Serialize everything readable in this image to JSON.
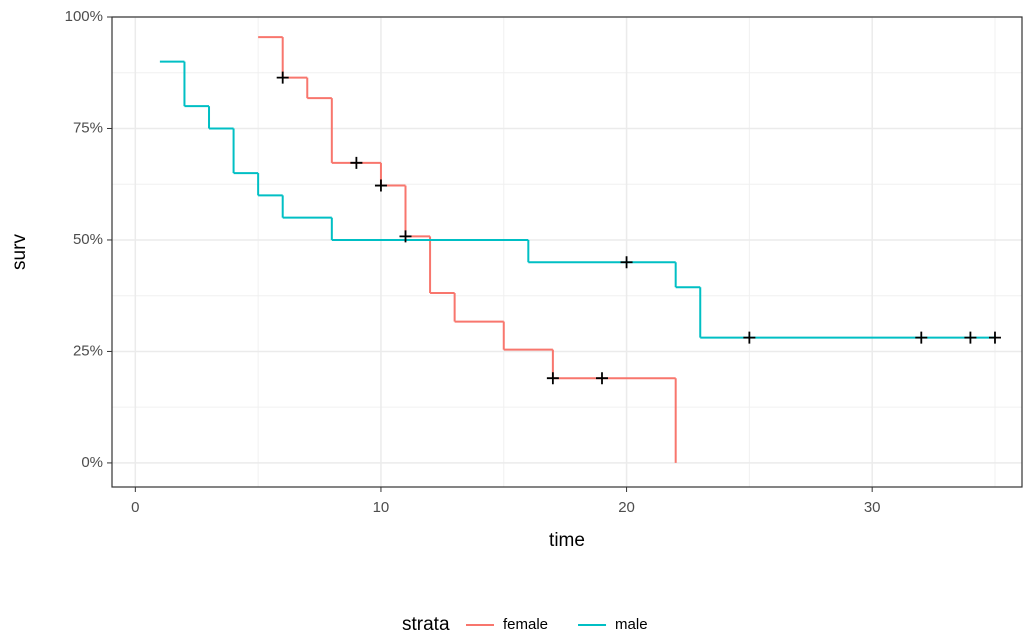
{
  "chart_data": {
    "type": "step",
    "x_label": "time",
    "y_label": "surv",
    "xlim": [
      -0.95,
      36.1
    ],
    "xticks": [
      0,
      10,
      20,
      30
    ],
    "ylim": [
      -5.4,
      100
    ],
    "yticks": [
      {
        "value": 0,
        "label": "0%"
      },
      {
        "value": 25,
        "label": "25%"
      },
      {
        "value": 50,
        "label": "50%"
      },
      {
        "value": 75,
        "label": "75%"
      },
      {
        "value": 100,
        "label": "100%"
      }
    ],
    "grid": true,
    "legend_position": "bottom",
    "legend_title": "strata",
    "censor_color": "#000000",
    "series": [
      {
        "name": "female",
        "color": "#F8766D",
        "x": [
          5,
          6,
          7,
          8,
          10,
          11,
          12,
          13,
          15,
          17,
          22
        ],
        "values": [
          95.5,
          86.4,
          81.8,
          67.3,
          62.2,
          50.8,
          38.1,
          31.7,
          25.4,
          19.0,
          0
        ],
        "censor_x": [
          6,
          9,
          10,
          11,
          17,
          19
        ],
        "censor_values": [
          86.4,
          67.3,
          62.2,
          50.8,
          19.0,
          19.0
        ]
      },
      {
        "name": "male",
        "color": "#00BFC4",
        "x": [
          1,
          2,
          3,
          4,
          5,
          6,
          8,
          16,
          22,
          23,
          35
        ],
        "values": [
          90,
          80,
          75,
          65,
          60,
          55,
          50,
          45,
          39.4,
          28.1,
          28.1
        ],
        "censor_x": [
          20,
          25,
          32,
          34,
          35
        ],
        "censor_values": [
          45,
          28.1,
          28.1,
          28.1,
          28.1
        ]
      }
    ]
  }
}
